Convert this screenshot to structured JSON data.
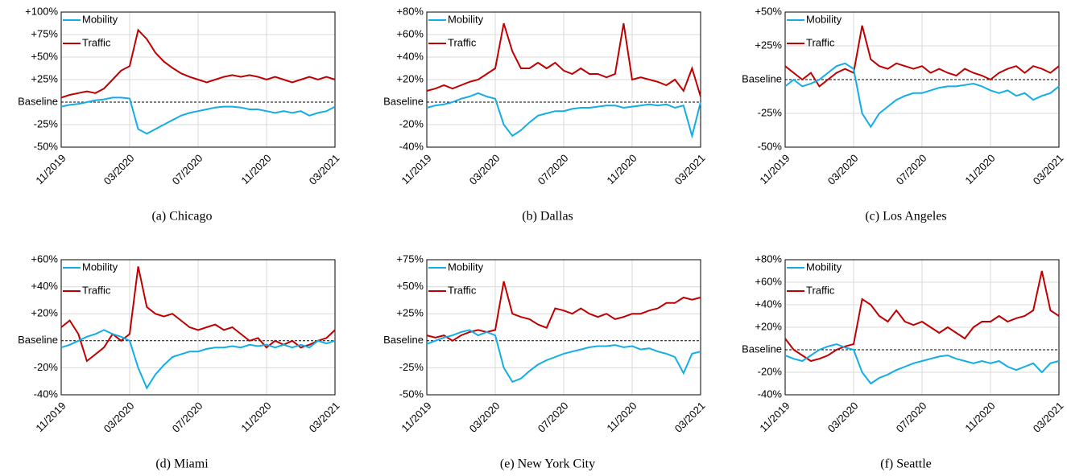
{
  "chart_data": [
    {
      "type": "line",
      "caption": "(a) Chicago",
      "legend": "upper left",
      "grid": true,
      "categories": [
        "11/2019",
        null,
        null,
        null,
        null,
        null,
        null,
        null,
        "03/2020",
        null,
        null,
        null,
        null,
        null,
        null,
        null,
        "07/2020",
        null,
        null,
        null,
        null,
        null,
        null,
        null,
        "11/2020",
        null,
        null,
        null,
        null,
        null,
        null,
        null,
        "03/2021"
      ],
      "ylim": [
        -50,
        100
      ],
      "yticks": [
        {
          "value": -50,
          "label": "-50%"
        },
        {
          "value": -25,
          "label": "-25%"
        },
        {
          "value": 0,
          "label": "Baseline"
        },
        {
          "value": 25,
          "label": "+25%"
        },
        {
          "value": 50,
          "label": "+50%"
        },
        {
          "value": 75,
          "label": "+75%"
        },
        {
          "value": 100,
          "label": "+100%"
        }
      ],
      "series": [
        {
          "name": "Mobility",
          "color": "#12ade6",
          "values": [
            -5,
            -3,
            -2,
            0,
            2,
            3,
            5,
            5,
            4,
            -30,
            -35,
            -30,
            -25,
            -20,
            -15,
            -12,
            -10,
            -8,
            -6,
            -5,
            -5,
            -6,
            -8,
            -8,
            -10,
            -12,
            -10,
            -12,
            -10,
            -15,
            -12,
            -10,
            -5
          ]
        },
        {
          "name": "Traffic",
          "color": "#c00000",
          "values": [
            5,
            8,
            10,
            12,
            10,
            15,
            25,
            35,
            40,
            80,
            70,
            55,
            45,
            38,
            32,
            28,
            25,
            22,
            25,
            28,
            30,
            28,
            30,
            28,
            25,
            28,
            25,
            22,
            25,
            28,
            25,
            28,
            25
          ]
        }
      ]
    },
    {
      "type": "line",
      "caption": "(b) Dallas",
      "legend": "upper left",
      "grid": true,
      "categories": [
        "11/2019",
        null,
        null,
        null,
        null,
        null,
        null,
        null,
        "03/2020",
        null,
        null,
        null,
        null,
        null,
        null,
        null,
        "07/2020",
        null,
        null,
        null,
        null,
        null,
        null,
        null,
        "11/2020",
        null,
        null,
        null,
        null,
        null,
        null,
        null,
        "03/2021"
      ],
      "ylim": [
        -40,
        80
      ],
      "yticks": [
        {
          "value": -40,
          "label": "-40%"
        },
        {
          "value": -20,
          "label": "-20%"
        },
        {
          "value": 0,
          "label": "Baseline"
        },
        {
          "value": 20,
          "label": "+20%"
        },
        {
          "value": 40,
          "label": "+40%"
        },
        {
          "value": 60,
          "label": "+60%"
        },
        {
          "value": 80,
          "label": "+80%"
        }
      ],
      "series": [
        {
          "name": "Mobility",
          "color": "#12ade6",
          "values": [
            -5,
            -3,
            -2,
            0,
            3,
            5,
            8,
            5,
            3,
            -20,
            -30,
            -25,
            -18,
            -12,
            -10,
            -8,
            -8,
            -6,
            -5,
            -5,
            -4,
            -3,
            -3,
            -5,
            -4,
            -3,
            -2,
            -3,
            -2,
            -5,
            -3,
            -30,
            0
          ]
        },
        {
          "name": "Traffic",
          "color": "#c00000",
          "values": [
            10,
            12,
            15,
            12,
            15,
            18,
            20,
            25,
            30,
            70,
            45,
            30,
            30,
            35,
            30,
            35,
            28,
            25,
            30,
            25,
            25,
            22,
            25,
            70,
            20,
            22,
            20,
            18,
            15,
            20,
            10,
            30,
            5
          ]
        }
      ]
    },
    {
      "type": "line",
      "caption": "(c) Los Angeles",
      "legend": "upper left",
      "grid": true,
      "categories": [
        "11/2019",
        null,
        null,
        null,
        null,
        null,
        null,
        null,
        "03/2020",
        null,
        null,
        null,
        null,
        null,
        null,
        null,
        "07/2020",
        null,
        null,
        null,
        null,
        null,
        null,
        null,
        "11/2020",
        null,
        null,
        null,
        null,
        null,
        null,
        null,
        "03/2021"
      ],
      "ylim": [
        -50,
        50
      ],
      "yticks": [
        {
          "value": -50,
          "label": "-50%"
        },
        {
          "value": -25,
          "label": "-25%"
        },
        {
          "value": 0,
          "label": "Baseline"
        },
        {
          "value": 25,
          "label": "+25%"
        },
        {
          "value": 50,
          "label": "+50%"
        }
      ],
      "series": [
        {
          "name": "Mobility",
          "color": "#12ade6",
          "values": [
            -5,
            0,
            -5,
            -3,
            0,
            5,
            10,
            12,
            8,
            -25,
            -35,
            -25,
            -20,
            -15,
            -12,
            -10,
            -10,
            -8,
            -6,
            -5,
            -5,
            -4,
            -3,
            -5,
            -8,
            -10,
            -8,
            -12,
            -10,
            -15,
            -12,
            -10,
            -5
          ]
        },
        {
          "name": "Traffic",
          "color": "#c00000",
          "values": [
            10,
            5,
            0,
            5,
            -5,
            0,
            5,
            8,
            5,
            40,
            15,
            10,
            8,
            12,
            10,
            8,
            10,
            5,
            8,
            5,
            3,
            8,
            5,
            3,
            0,
            5,
            8,
            10,
            5,
            10,
            8,
            5,
            10
          ]
        }
      ]
    },
    {
      "type": "line",
      "caption": "(d) Miami",
      "legend": "upper left",
      "grid": true,
      "categories": [
        "11/2019",
        null,
        null,
        null,
        null,
        null,
        null,
        null,
        "03/2020",
        null,
        null,
        null,
        null,
        null,
        null,
        null,
        "07/2020",
        null,
        null,
        null,
        null,
        null,
        null,
        null,
        "11/2020",
        null,
        null,
        null,
        null,
        null,
        null,
        null,
        "03/2021"
      ],
      "ylim": [
        -40,
        60
      ],
      "yticks": [
        {
          "value": -40,
          "label": "-40%"
        },
        {
          "value": -20,
          "label": "-20%"
        },
        {
          "value": 0,
          "label": "Baseline"
        },
        {
          "value": 20,
          "label": "+20%"
        },
        {
          "value": 40,
          "label": "+40%"
        },
        {
          "value": 60,
          "label": "+60%"
        }
      ],
      "series": [
        {
          "name": "Mobility",
          "color": "#12ade6",
          "values": [
            -5,
            -3,
            0,
            3,
            5,
            8,
            5,
            3,
            0,
            -20,
            -35,
            -25,
            -18,
            -12,
            -10,
            -8,
            -8,
            -6,
            -5,
            -5,
            -4,
            -5,
            -3,
            -4,
            -3,
            -5,
            -3,
            -5,
            -3,
            -5,
            0,
            -2,
            0
          ]
        },
        {
          "name": "Traffic",
          "color": "#c00000",
          "values": [
            10,
            15,
            5,
            -15,
            -10,
            -5,
            5,
            0,
            5,
            55,
            25,
            20,
            18,
            20,
            15,
            10,
            8,
            10,
            12,
            8,
            10,
            5,
            0,
            2,
            -5,
            0,
            -3,
            0,
            -5,
            -3,
            0,
            2,
            8
          ]
        }
      ]
    },
    {
      "type": "line",
      "caption": "(e) New York City",
      "legend": "upper left",
      "grid": true,
      "categories": [
        "11/2019",
        null,
        null,
        null,
        null,
        null,
        null,
        null,
        "03/2020",
        null,
        null,
        null,
        null,
        null,
        null,
        null,
        "07/2020",
        null,
        null,
        null,
        null,
        null,
        null,
        null,
        "11/2020",
        null,
        null,
        null,
        null,
        null,
        null,
        null,
        "03/2021"
      ],
      "ylim": [
        -50,
        75
      ],
      "yticks": [
        {
          "value": -50,
          "label": "-50%"
        },
        {
          "value": -25,
          "label": "-25%"
        },
        {
          "value": 0,
          "label": "Baseline"
        },
        {
          "value": 25,
          "label": "+25%"
        },
        {
          "value": 50,
          "label": "+50%"
        },
        {
          "value": 75,
          "label": "+75%"
        }
      ],
      "series": [
        {
          "name": "Mobility",
          "color": "#12ade6",
          "values": [
            -3,
            0,
            3,
            5,
            8,
            10,
            5,
            8,
            5,
            -25,
            -38,
            -35,
            -28,
            -22,
            -18,
            -15,
            -12,
            -10,
            -8,
            -6,
            -5,
            -5,
            -4,
            -6,
            -5,
            -8,
            -7,
            -10,
            -12,
            -15,
            -30,
            -12,
            -10
          ]
        },
        {
          "name": "Traffic",
          "color": "#c00000",
          "values": [
            5,
            3,
            5,
            0,
            5,
            8,
            10,
            8,
            10,
            55,
            25,
            22,
            20,
            15,
            12,
            30,
            28,
            25,
            30,
            25,
            22,
            25,
            20,
            22,
            25,
            25,
            28,
            30,
            35,
            35,
            40,
            38,
            40
          ]
        }
      ]
    },
    {
      "type": "line",
      "caption": "(f) Seattle",
      "legend": "upper left",
      "grid": true,
      "categories": [
        "11/2019",
        null,
        null,
        null,
        null,
        null,
        null,
        null,
        "03/2020",
        null,
        null,
        null,
        null,
        null,
        null,
        null,
        "07/2020",
        null,
        null,
        null,
        null,
        null,
        null,
        null,
        "11/2020",
        null,
        null,
        null,
        null,
        null,
        null,
        null,
        "03/2021"
      ],
      "ylim": [
        -40,
        80
      ],
      "yticks": [
        {
          "value": -40,
          "label": "-40%"
        },
        {
          "value": -20,
          "label": "-20%"
        },
        {
          "value": 0,
          "label": "Baseline"
        },
        {
          "value": 20,
          "label": "+20%"
        },
        {
          "value": 40,
          "label": "+40%"
        },
        {
          "value": 60,
          "label": "+60%"
        },
        {
          "value": 80,
          "label": "+80%"
        }
      ],
      "series": [
        {
          "name": "Mobility",
          "color": "#12ade6",
          "values": [
            -5,
            -8,
            -10,
            -5,
            0,
            3,
            5,
            2,
            0,
            -20,
            -30,
            -25,
            -22,
            -18,
            -15,
            -12,
            -10,
            -8,
            -6,
            -5,
            -8,
            -10,
            -12,
            -10,
            -12,
            -10,
            -15,
            -18,
            -15,
            -12,
            -20,
            -12,
            -10
          ]
        },
        {
          "name": "Traffic",
          "color": "#c00000",
          "values": [
            10,
            0,
            -5,
            -10,
            -8,
            -5,
            0,
            3,
            5,
            45,
            40,
            30,
            25,
            35,
            25,
            22,
            25,
            20,
            15,
            20,
            15,
            10,
            20,
            25,
            25,
            30,
            25,
            28,
            30,
            35,
            70,
            35,
            30
          ]
        }
      ]
    }
  ]
}
